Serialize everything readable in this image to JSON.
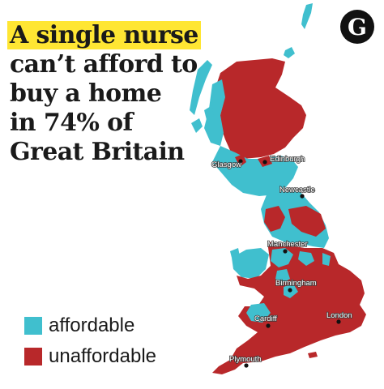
{
  "headline": {
    "line1": "A single nurse",
    "line2": "can’t afford to",
    "line3": "buy a home",
    "line4": "in 74% of",
    "line5": "Great Britain"
  },
  "logo": {
    "letter": "G"
  },
  "legend": {
    "items": [
      {
        "label": "affordable",
        "color": "#40bfce"
      },
      {
        "label": "unaffordable",
        "color": "#b8282a"
      }
    ]
  },
  "colors": {
    "affordable": "#40bfce",
    "unaffordable": "#b8282a",
    "background": "#ffffff"
  },
  "cities": [
    {
      "id": "glasgow",
      "label": "Glasgow"
    },
    {
      "id": "edinburgh",
      "label": "Edinburgh"
    },
    {
      "id": "newcastle",
      "label": "Newcastle"
    },
    {
      "id": "manchester",
      "label": "Manchester"
    },
    {
      "id": "birmingham",
      "label": "Birmingham"
    },
    {
      "id": "cardiff",
      "label": "Cardiff"
    },
    {
      "id": "london",
      "label": "London"
    },
    {
      "id": "plymouth",
      "label": "Plymouth"
    }
  ]
}
